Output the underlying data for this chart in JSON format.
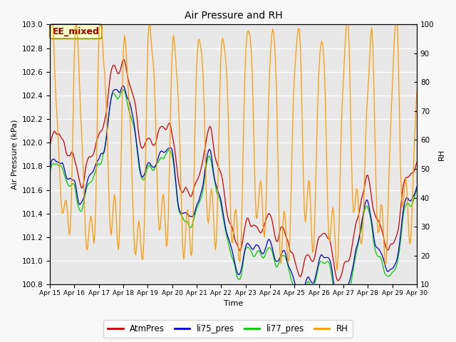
{
  "title": "Air Pressure and RH",
  "ylabel_left": "Air Pressure (kPa)",
  "ylabel_right": "RH",
  "xlabel": "Time",
  "annotation": "EE_mixed",
  "xlim_days": [
    15,
    30
  ],
  "ylim_left": [
    100.8,
    103.0
  ],
  "ylim_right": [
    10,
    100
  ],
  "yticks_left": [
    100.8,
    101.0,
    101.2,
    101.4,
    101.6,
    101.8,
    102.0,
    102.2,
    102.4,
    102.6,
    102.8,
    103.0
  ],
  "yticks_right": [
    10,
    20,
    30,
    40,
    50,
    60,
    70,
    80,
    90,
    100
  ],
  "xtick_labels": [
    "Apr 15",
    "Apr 16",
    "Apr 17",
    "Apr 18",
    "Apr 19",
    "Apr 20",
    "Apr 21",
    "Apr 22",
    "Apr 23",
    "Apr 24",
    "Apr 25",
    "Apr 26",
    "Apr 27",
    "Apr 28",
    "Apr 29",
    "Apr 30"
  ],
  "colors": {
    "AtmPres": "#cc0000",
    "li75_pres": "#0000cc",
    "li77_pres": "#00cc00",
    "RH": "#ff9900"
  },
  "lw": 0.9,
  "fig_bg": "#f8f8f8",
  "ax_bg": "#e8e8e8",
  "grid_color": "#ffffff",
  "annotation_fg": "#990000",
  "annotation_bg": "#ffffcc",
  "annotation_edge": "#888800"
}
